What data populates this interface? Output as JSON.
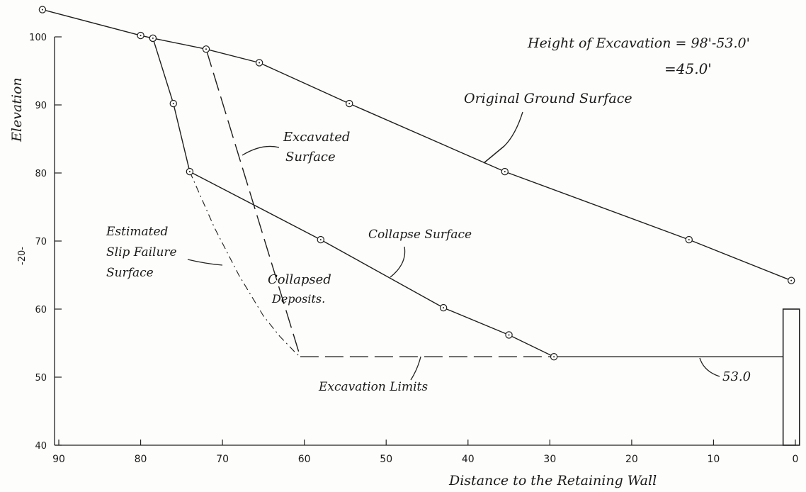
{
  "chart_data": {
    "type": "line",
    "xlabel": "Distance to the Retaining Wall",
    "ylabel": "Elevation",
    "xlim": [
      90,
      0
    ],
    "ylim": [
      40,
      105
    ],
    "x_ticks": [
      90,
      80,
      70,
      60,
      50,
      40,
      30,
      20,
      10,
      0
    ],
    "x_tick_labels": [
      "90",
      "80",
      "70",
      "60",
      "50",
      "40",
      "30",
      "20",
      "10",
      "0"
    ],
    "y_ticks": [
      40,
      50,
      60,
      70,
      80,
      90,
      100
    ],
    "y_tick_labels": [
      "40",
      "50",
      "60",
      "70",
      "80",
      "90",
      "100"
    ],
    "page_marker": "-20-",
    "series": [
      {
        "name": "Original Ground Surface",
        "style": "solid-markers",
        "x": [
          92,
          80,
          78.5,
          72,
          65.5,
          54.5,
          35.5,
          13,
          0.5
        ],
        "y": [
          104,
          100.2,
          99.8,
          98.2,
          96.2,
          90.2,
          80.2,
          70.2,
          64.2
        ]
      },
      {
        "name": "Collapse Surface",
        "style": "solid-markers",
        "x": [
          78.5,
          76,
          74,
          58,
          43,
          35,
          29.5
        ],
        "y": [
          99.8,
          90.2,
          80.2,
          70.2,
          60.2,
          56.2,
          53
        ]
      },
      {
        "name": "Excavated Surface",
        "style": "long-dash",
        "x": [
          72,
          60.5
        ],
        "y": [
          98.2,
          53
        ]
      },
      {
        "name": "Estimated Slip Failure Surface",
        "style": "dash-dot",
        "x": [
          74,
          71,
          68,
          65,
          63,
          61,
          60.5
        ],
        "y": [
          80.2,
          72,
          65,
          59,
          56,
          53.5,
          53
        ]
      },
      {
        "name": "Excavation Limits",
        "style": "long-dash",
        "x": [
          60.5,
          29.5
        ],
        "y": [
          53,
          53
        ]
      },
      {
        "name": "53.0",
        "style": "solid",
        "x": [
          29.5,
          1.5
        ],
        "y": [
          53,
          53
        ]
      }
    ],
    "retaining_wall": {
      "x_left": 1.5,
      "x_right": -0.5,
      "top": 60,
      "bottom": 40
    },
    "annotations": {
      "height_line1": "Height of Excavation = 98'-53.0'",
      "height_line2": "=45.0'",
      "original_ground": "Original Ground Surface",
      "excavated_1": "Excavated",
      "excavated_2": "Surface",
      "estimated_1": "Estimated",
      "estimated_2": "Slip Failure",
      "estimated_3": "Surface",
      "collapsed_1": "Collapsed",
      "collapsed_2": "Deposits.",
      "collapse_surface": "Collapse Surface",
      "excavation_limits": "Excavation Limits",
      "elev_53": "53.0"
    }
  }
}
